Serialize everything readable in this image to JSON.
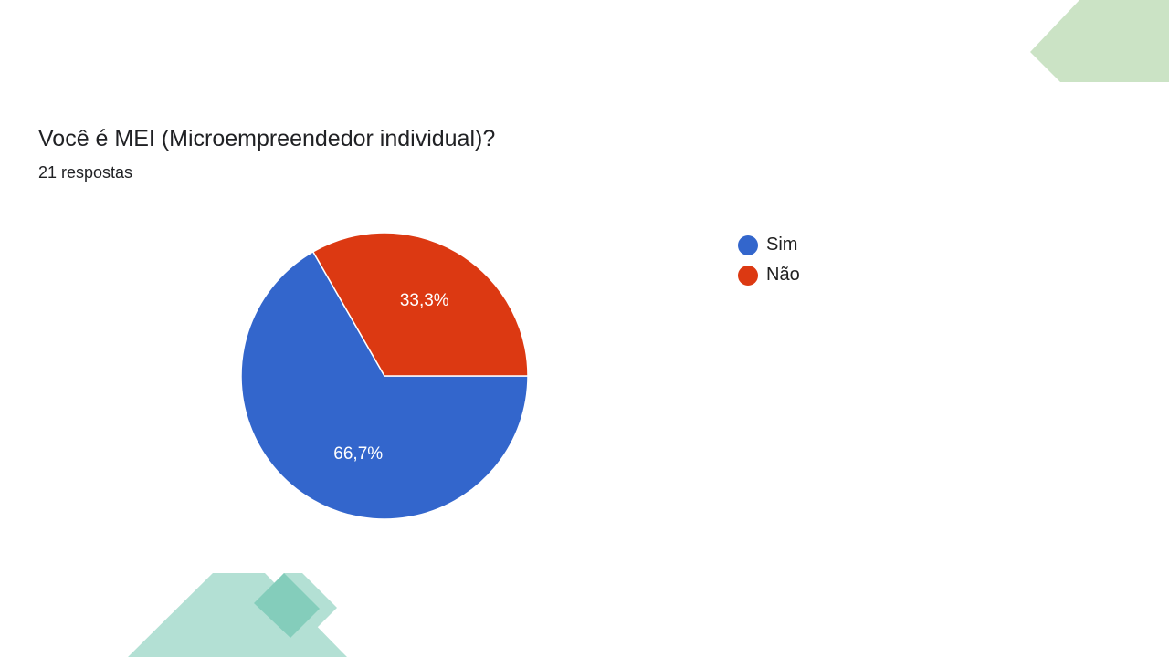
{
  "chart_data": {
    "type": "pie",
    "title": "Você é MEI (Microempreendedor individual)?",
    "subtitle": "21 respostas",
    "slices": [
      {
        "label": "Sim",
        "value": 66.7,
        "display": "66,7%",
        "color": "#3366cc"
      },
      {
        "label": "Não",
        "value": 33.3,
        "display": "33,3%",
        "color": "#dc3912"
      }
    ],
    "legend_position": "right"
  },
  "decoration_colors": {
    "green_light": "#cbe3c5",
    "teal_light": "#b3e0d4",
    "teal_mid": "#7ecbb8"
  }
}
